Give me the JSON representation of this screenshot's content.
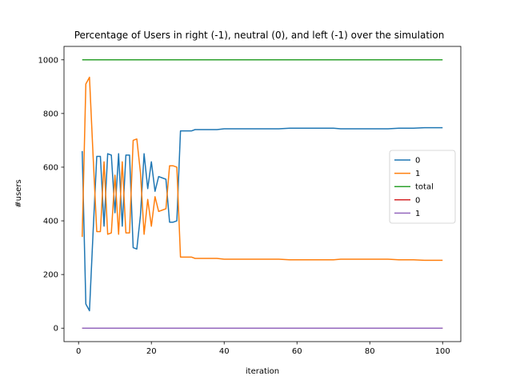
{
  "chart_data": {
    "type": "line",
    "title": "Percentage of Users in right (-1), neutral (0), and left (-1) over the simulation",
    "xlabel": "iteration",
    "ylabel": "#users",
    "xlim": [
      -4,
      105
    ],
    "ylim": [
      -50,
      1050
    ],
    "xticks": [
      0,
      20,
      40,
      60,
      80,
      100
    ],
    "yticks": [
      0,
      200,
      400,
      600,
      800,
      1000
    ],
    "grid": false,
    "legend_position": "center-right",
    "series": [
      {
        "name": "0",
        "color": "#1f77b4",
        "points": [
          [
            1,
            660
          ],
          [
            2,
            90
          ],
          [
            3,
            65
          ],
          [
            4,
            360
          ],
          [
            5,
            640
          ],
          [
            6,
            640
          ],
          [
            7,
            380
          ],
          [
            8,
            650
          ],
          [
            9,
            645
          ],
          [
            10,
            430
          ],
          [
            11,
            650
          ],
          [
            12,
            380
          ],
          [
            13,
            645
          ],
          [
            14,
            645
          ],
          [
            15,
            300
          ],
          [
            16,
            295
          ],
          [
            17,
            420
          ],
          [
            18,
            650
          ],
          [
            19,
            520
          ],
          [
            20,
            620
          ],
          [
            21,
            510
          ],
          [
            22,
            565
          ],
          [
            23,
            560
          ],
          [
            24,
            555
          ],
          [
            25,
            395
          ],
          [
            26,
            395
          ],
          [
            27,
            400
          ],
          [
            28,
            735
          ],
          [
            29,
            735
          ],
          [
            30,
            735
          ],
          [
            31,
            735
          ],
          [
            32,
            740
          ],
          [
            35,
            740
          ],
          [
            38,
            740
          ],
          [
            40,
            743
          ],
          [
            45,
            743
          ],
          [
            50,
            743
          ],
          [
            55,
            743
          ],
          [
            58,
            745
          ],
          [
            65,
            745
          ],
          [
            70,
            745
          ],
          [
            72,
            743
          ],
          [
            75,
            743
          ],
          [
            80,
            743
          ],
          [
            85,
            743
          ],
          [
            88,
            745
          ],
          [
            92,
            745
          ],
          [
            95,
            747
          ],
          [
            100,
            747
          ]
        ]
      },
      {
        "name": "1",
        "color": "#ff7f0e",
        "points": [
          [
            1,
            340
          ],
          [
            2,
            910
          ],
          [
            3,
            935
          ],
          [
            4,
            640
          ],
          [
            5,
            360
          ],
          [
            6,
            360
          ],
          [
            7,
            620
          ],
          [
            8,
            350
          ],
          [
            9,
            355
          ],
          [
            10,
            570
          ],
          [
            11,
            350
          ],
          [
            12,
            620
          ],
          [
            13,
            355
          ],
          [
            14,
            355
          ],
          [
            15,
            700
          ],
          [
            16,
            705
          ],
          [
            17,
            580
          ],
          [
            18,
            350
          ],
          [
            19,
            480
          ],
          [
            20,
            380
          ],
          [
            21,
            490
          ],
          [
            22,
            435
          ],
          [
            23,
            440
          ],
          [
            24,
            445
          ],
          [
            25,
            605
          ],
          [
            26,
            605
          ],
          [
            27,
            600
          ],
          [
            28,
            265
          ],
          [
            29,
            265
          ],
          [
            30,
            265
          ],
          [
            31,
            265
          ],
          [
            32,
            260
          ],
          [
            35,
            260
          ],
          [
            38,
            260
          ],
          [
            40,
            257
          ],
          [
            45,
            257
          ],
          [
            50,
            257
          ],
          [
            55,
            257
          ],
          [
            58,
            255
          ],
          [
            65,
            255
          ],
          [
            70,
            255
          ],
          [
            72,
            257
          ],
          [
            75,
            257
          ],
          [
            80,
            257
          ],
          [
            85,
            257
          ],
          [
            88,
            255
          ],
          [
            92,
            255
          ],
          [
            95,
            253
          ],
          [
            100,
            253
          ]
        ]
      },
      {
        "name": "total",
        "color": "#2ca02c",
        "points": [
          [
            1,
            1000
          ],
          [
            100,
            1000
          ]
        ]
      },
      {
        "name": "0",
        "color": "#d62728",
        "points": [
          [
            1,
            0
          ],
          [
            100,
            0
          ]
        ]
      },
      {
        "name": "1",
        "color": "#9467bd",
        "points": [
          [
            1,
            0
          ],
          [
            100,
            0
          ]
        ]
      }
    ]
  }
}
